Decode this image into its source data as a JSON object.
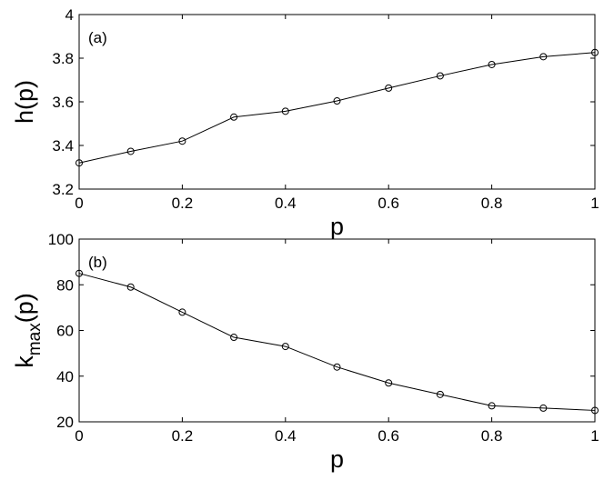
{
  "chart_data": [
    {
      "type": "line",
      "panel_tag": "(a)",
      "xlabel": "p",
      "ylabel": "h(p)",
      "xlim": [
        0,
        1
      ],
      "ylim": [
        3.2,
        4
      ],
      "xticks": [
        0,
        0.2,
        0.4,
        0.6,
        0.8,
        1
      ],
      "xtick_labels": [
        "0",
        "0.2",
        "0.4",
        "0.6",
        "0.8",
        "1"
      ],
      "yticks": [
        3.2,
        3.4,
        3.6,
        3.8,
        4
      ],
      "ytick_labels": [
        "3.2",
        "3.4",
        "3.6",
        "3.8",
        "4"
      ],
      "x": [
        0,
        0.1,
        0.2,
        0.3,
        0.4,
        0.5,
        0.6,
        0.7,
        0.8,
        0.9,
        1
      ],
      "y": [
        3.32,
        3.373,
        3.42,
        3.53,
        3.557,
        3.604,
        3.663,
        3.719,
        3.771,
        3.807,
        3.826
      ],
      "marker": "circle",
      "grid": false
    },
    {
      "type": "line",
      "panel_tag": "(b)",
      "xlabel": "p",
      "ylabel": "k",
      "ylabel_sub": "max",
      "ylabel_suffix": "(p)",
      "xlim": [
        0,
        1
      ],
      "ylim": [
        20,
        100
      ],
      "xticks": [
        0,
        0.2,
        0.4,
        0.6,
        0.8,
        1
      ],
      "xtick_labels": [
        "0",
        "0.2",
        "0.4",
        "0.6",
        "0.8",
        "1"
      ],
      "yticks": [
        20,
        40,
        60,
        80,
        100
      ],
      "ytick_labels": [
        "20",
        "40",
        "60",
        "80",
        "100"
      ],
      "x": [
        0,
        0.1,
        0.2,
        0.3,
        0.4,
        0.5,
        0.6,
        0.7,
        0.8,
        0.9,
        1
      ],
      "y": [
        85,
        79,
        68,
        57,
        53,
        44,
        37,
        32,
        27,
        26,
        25
      ],
      "marker": "circle",
      "grid": false
    }
  ]
}
